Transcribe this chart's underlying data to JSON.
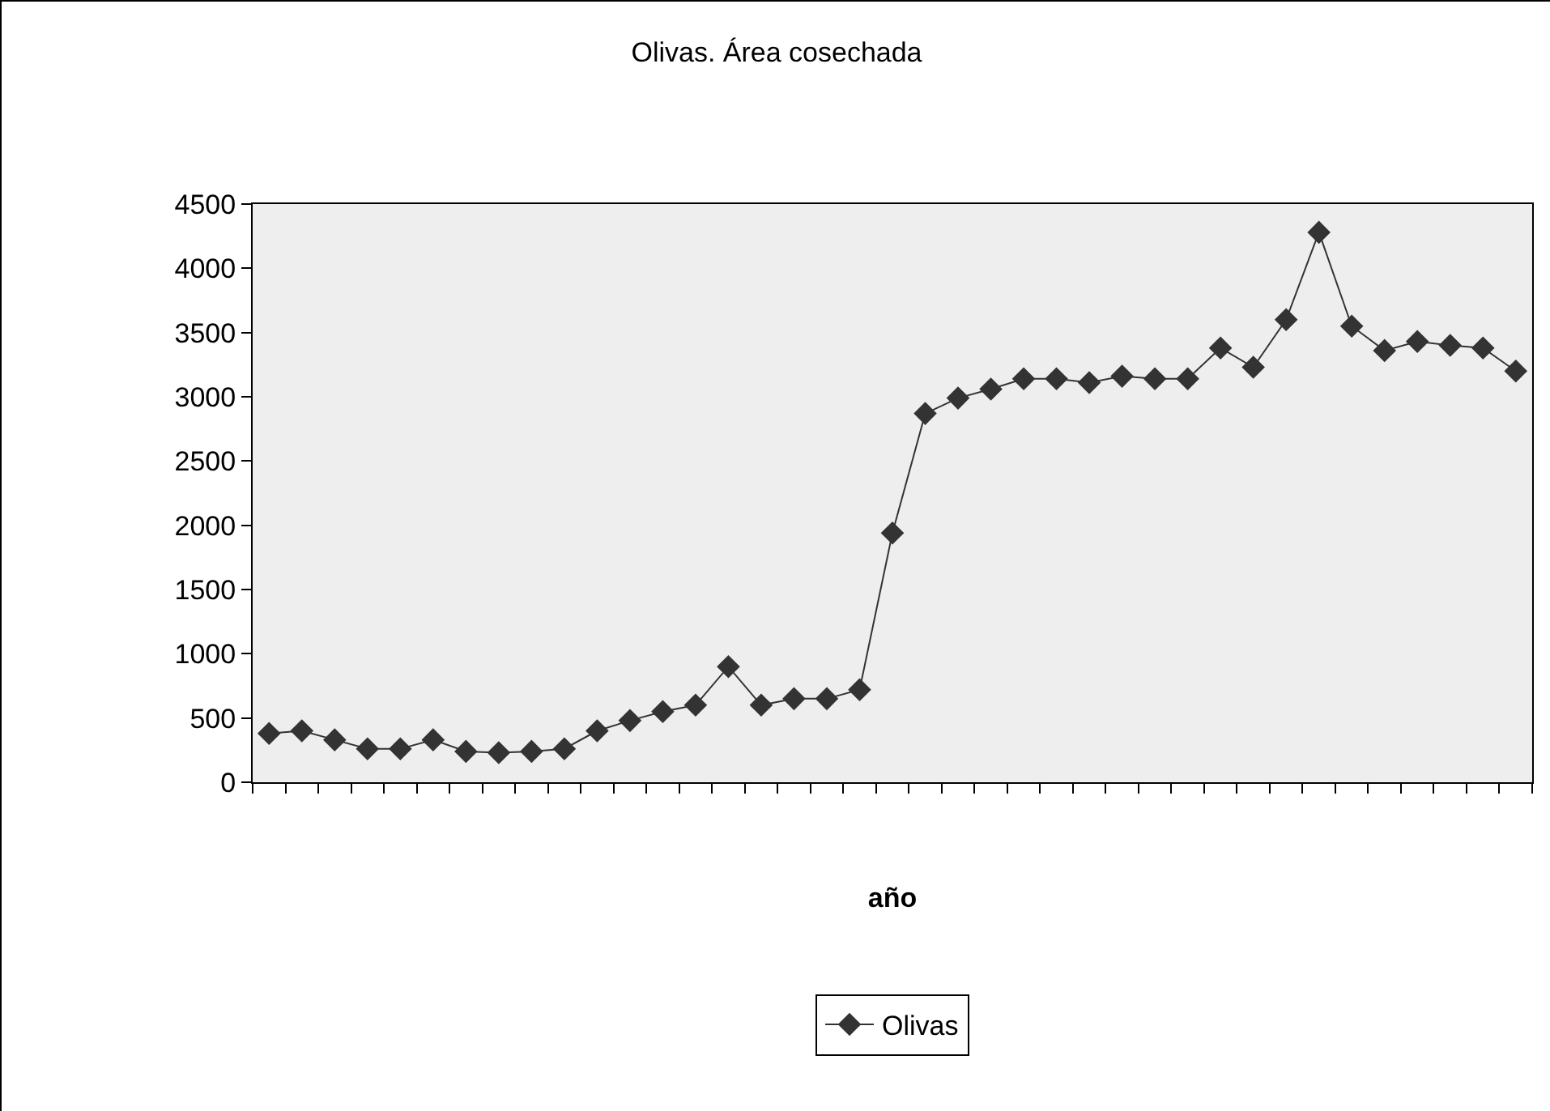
{
  "chart_data": {
    "type": "line",
    "title": "Olivas. Área cosechada",
    "xlabel": "año",
    "categories": [
      null,
      null,
      null,
      null,
      null,
      null,
      null,
      null,
      null,
      null,
      null,
      null,
      null,
      null,
      null,
      null,
      null,
      null,
      null,
      null,
      null,
      null,
      null,
      null,
      null,
      null,
      null,
      null,
      null,
      null,
      null,
      null,
      null,
      null,
      null,
      null,
      null,
      null,
      null
    ],
    "series": [
      {
        "name": "Olivas",
        "color": "#333333",
        "values": [
          380,
          400,
          330,
          260,
          260,
          330,
          240,
          230,
          240,
          260,
          400,
          480,
          550,
          600,
          900,
          600,
          650,
          650,
          720,
          1940,
          2870,
          2990,
          3060,
          3140,
          3140,
          3110,
          3160,
          3140,
          3140,
          3380,
          3230,
          3600,
          4280,
          3550,
          3360,
          3430,
          3400,
          3380,
          3200
        ]
      }
    ],
    "ylim": [
      0,
      4500
    ],
    "yticks": [
      0,
      500,
      1000,
      1500,
      2000,
      2500,
      3000,
      3500,
      4000,
      4500
    ],
    "grid": false,
    "legend": "bottom",
    "marker": "diamond",
    "line_style": "solid"
  }
}
